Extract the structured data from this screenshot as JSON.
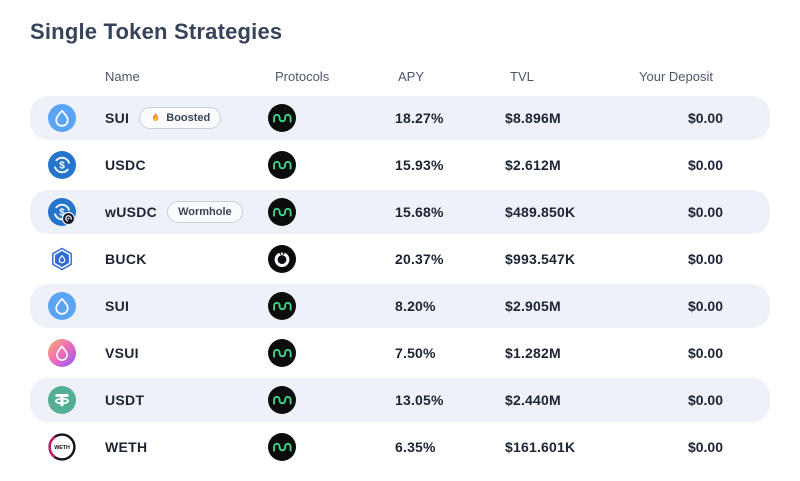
{
  "page": {
    "title": "Single Token Strategies"
  },
  "table": {
    "headers": [
      {
        "label": "Name"
      },
      {
        "label": "Protocols"
      },
      {
        "label": "APY"
      },
      {
        "label": "TVL"
      },
      {
        "label": "Your Deposit"
      }
    ],
    "rows": [
      {
        "name": "SUI",
        "token_icon": "sui-token-icon",
        "badge": {
          "label": "Boosted",
          "icon": "flame-icon"
        },
        "protocol_icon": "mmt-protocol-icon",
        "apy": "18.27%",
        "tvl": "$8.896M",
        "deposit": "$0.00"
      },
      {
        "name": "USDC",
        "token_icon": "usdc-token-icon",
        "protocol_icon": "mmt-protocol-icon",
        "apy": "15.93%",
        "tvl": "$2.612M",
        "deposit": "$0.00"
      },
      {
        "name": "wUSDC",
        "token_icon": "wusdc-token-icon",
        "badge": {
          "label": "Wormhole"
        },
        "protocol_icon": "mmt-protocol-icon",
        "apy": "15.68%",
        "tvl": "$489.850K",
        "deposit": "$0.00"
      },
      {
        "name": "BUCK",
        "token_icon": "buck-token-icon",
        "protocol_icon": "bucket-protocol-icon",
        "apy": "20.37%",
        "tvl": "$993.547K",
        "deposit": "$0.00"
      },
      {
        "name": "SUI",
        "token_icon": "sui-token-icon",
        "protocol_icon": "mmt-protocol-icon",
        "apy": "8.20%",
        "tvl": "$2.905M",
        "deposit": "$0.00"
      },
      {
        "name": "VSUI",
        "token_icon": "vsui-token-icon",
        "protocol_icon": "mmt-protocol-icon",
        "apy": "7.50%",
        "tvl": "$1.282M",
        "deposit": "$0.00"
      },
      {
        "name": "USDT",
        "token_icon": "usdt-token-icon",
        "protocol_icon": "mmt-protocol-icon",
        "apy": "13.05%",
        "tvl": "$2.440M",
        "deposit": "$0.00"
      },
      {
        "name": "WETH",
        "token_icon": "weth-token-icon",
        "protocol_icon": "mmt-protocol-icon",
        "apy": "6.35%",
        "tvl": "$161.601K",
        "deposit": "$0.00"
      }
    ]
  },
  "colors": {
    "row_shade": "#eef2f8",
    "title_text": "#36435a",
    "header_text": "#4a5568",
    "cell_text": "#1c2433",
    "sui_blue": "#5ba4f5",
    "usdc_blue": "#2775ca",
    "buck_blue": "#2e6bd6",
    "usdt_green": "#53ae94",
    "vsui_gradient": [
      "#f9b06a",
      "#ef6cb8",
      "#8b5cf6"
    ],
    "mmt_green": "#3fd68c",
    "weth_pink": "#cc166d",
    "flame_orange": "#f4900c"
  }
}
